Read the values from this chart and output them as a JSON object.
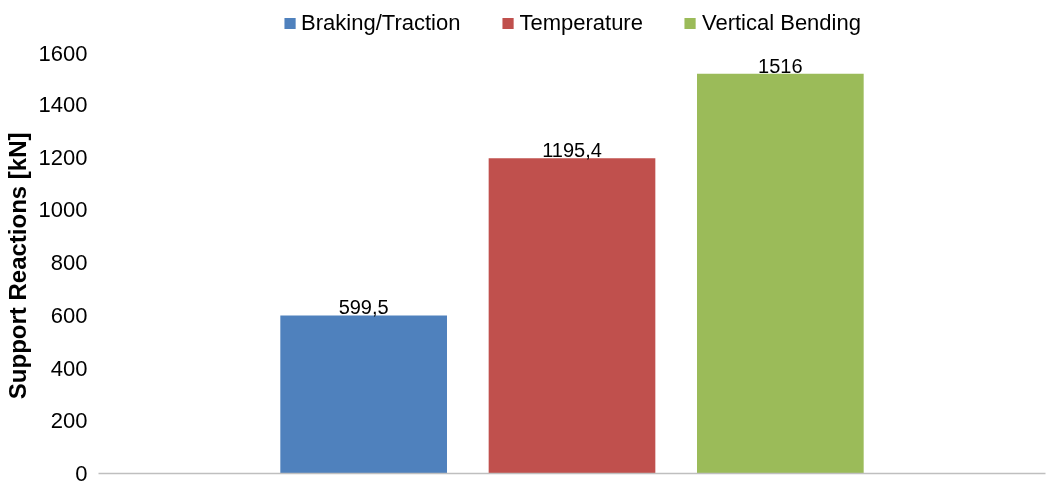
{
  "chart_data": {
    "type": "bar",
    "ylabel": "Support Reactions  [kN]",
    "categories": [
      null
    ],
    "series": [
      {
        "name": "Braking/Traction",
        "color": "#4f81bd",
        "values": [
          599.5
        ],
        "value_labels": [
          "599,5"
        ]
      },
      {
        "name": "Temperature",
        "color": "#c0504d",
        "values": [
          1195.4
        ],
        "value_labels": [
          "1195,4"
        ]
      },
      {
        "name": "Vertical Bending",
        "color": "#9bbb59",
        "values": [
          1516
        ],
        "value_labels": [
          "1516"
        ]
      }
    ],
    "ylim": [
      0,
      1600
    ],
    "yticks": [
      0,
      200,
      400,
      600,
      800,
      1000,
      1200,
      1400,
      1600
    ],
    "grid": false,
    "legend": "top"
  }
}
